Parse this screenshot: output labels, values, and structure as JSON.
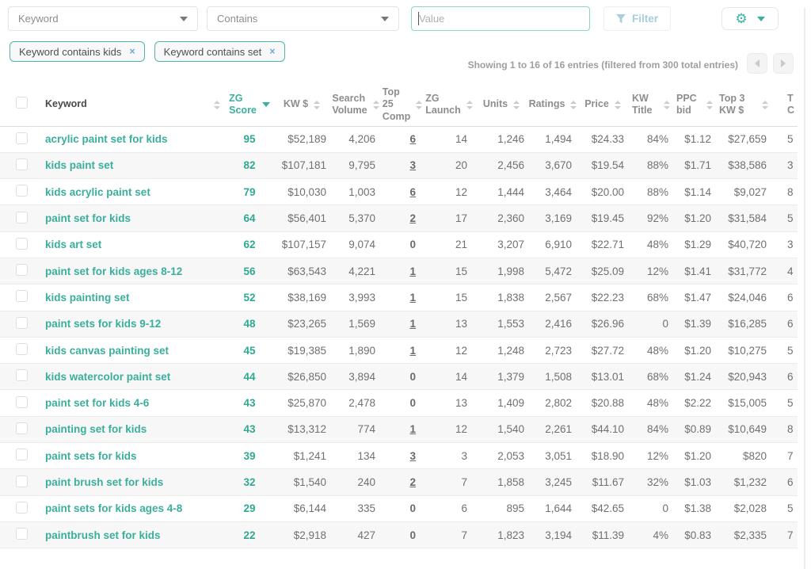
{
  "accent_color": "#3aaf9c",
  "icons": {
    "remove": "×",
    "gear": "⚙"
  },
  "filter_bar": {
    "field_select": {
      "value": "Keyword"
    },
    "operator_select": {
      "value": "Contains"
    },
    "value_input": {
      "placeholder": "Value"
    },
    "filter_button_label": "Filter"
  },
  "filters": [
    {
      "label": "Keyword contains kids"
    },
    {
      "label": "Keyword contains set"
    }
  ],
  "results_summary": "Showing 1 to 16 of 16 entries (filtered from 300 total entries)",
  "table": {
    "columns": [
      {
        "label": "Keyword",
        "sortable": true
      },
      {
        "label": "ZG Score",
        "sortable": true,
        "sorted": "desc"
      },
      {
        "label": "KW $",
        "sortable": true
      },
      {
        "label": "Search Volume",
        "sortable": true
      },
      {
        "label": "Top 25 Comp",
        "sortable": true
      },
      {
        "label": "ZG Launch",
        "sortable": true
      },
      {
        "label": "Units",
        "sortable": true
      },
      {
        "label": "Ratings",
        "sortable": true
      },
      {
        "label": "Price",
        "sortable": true
      },
      {
        "label": "KW Title",
        "sortable": true
      },
      {
        "label": "PPC bid",
        "sortable": true
      },
      {
        "label": "Top 3 KW $",
        "sortable": true
      },
      {
        "label": "T\nC",
        "sortable": false,
        "clipped": true
      }
    ],
    "rows": [
      {
        "keyword": "acrylic paint set for kids",
        "zg_score": "95",
        "kw_dollars": "$52,189",
        "search_volume": "4,206",
        "top_25_comp": "6",
        "top_25_link": true,
        "zg_launch": "14",
        "units": "1,246",
        "ratings": "1,494",
        "price": "$24.33",
        "kw_title": "84%",
        "ppc_bid": "$1.12",
        "top_3_kw_dollars": "$27,659",
        "clipped_col": "5"
      },
      {
        "keyword": "kids paint set",
        "zg_score": "82",
        "kw_dollars": "$107,181",
        "search_volume": "9,795",
        "top_25_comp": "3",
        "top_25_link": true,
        "zg_launch": "20",
        "units": "2,456",
        "ratings": "3,670",
        "price": "$19.54",
        "kw_title": "88%",
        "ppc_bid": "$1.71",
        "top_3_kw_dollars": "$38,586",
        "clipped_col": "3"
      },
      {
        "keyword": "kids acrylic paint set",
        "zg_score": "79",
        "kw_dollars": "$10,030",
        "search_volume": "1,003",
        "top_25_comp": "6",
        "top_25_link": true,
        "zg_launch": "12",
        "units": "1,444",
        "ratings": "3,464",
        "price": "$20.00",
        "kw_title": "88%",
        "ppc_bid": "$1.14",
        "top_3_kw_dollars": "$9,027",
        "clipped_col": "8"
      },
      {
        "keyword": "paint set for kids",
        "zg_score": "64",
        "kw_dollars": "$56,401",
        "search_volume": "5,370",
        "top_25_comp": "2",
        "top_25_link": true,
        "zg_launch": "17",
        "units": "2,360",
        "ratings": "3,169",
        "price": "$19.45",
        "kw_title": "92%",
        "ppc_bid": "$1.20",
        "top_3_kw_dollars": "$31,584",
        "clipped_col": "5"
      },
      {
        "keyword": "kids art set",
        "zg_score": "62",
        "kw_dollars": "$107,157",
        "search_volume": "9,074",
        "top_25_comp": "0",
        "top_25_link": false,
        "zg_launch": "21",
        "units": "3,207",
        "ratings": "6,910",
        "price": "$22.71",
        "kw_title": "48%",
        "ppc_bid": "$1.29",
        "top_3_kw_dollars": "$40,720",
        "clipped_col": "3"
      },
      {
        "keyword": "paint set for kids ages 8-12",
        "zg_score": "56",
        "kw_dollars": "$63,543",
        "search_volume": "4,221",
        "top_25_comp": "1",
        "top_25_link": true,
        "zg_launch": "15",
        "units": "1,998",
        "ratings": "5,472",
        "price": "$25.09",
        "kw_title": "12%",
        "ppc_bid": "$1.41",
        "top_3_kw_dollars": "$31,772",
        "clipped_col": "4"
      },
      {
        "keyword": "kids painting set",
        "zg_score": "52",
        "kw_dollars": "$38,169",
        "search_volume": "3,993",
        "top_25_comp": "1",
        "top_25_link": true,
        "zg_launch": "15",
        "units": "1,838",
        "ratings": "2,567",
        "price": "$22.23",
        "kw_title": "68%",
        "ppc_bid": "$1.47",
        "top_3_kw_dollars": "$24,046",
        "clipped_col": "6"
      },
      {
        "keyword": "paint sets for kids 9-12",
        "zg_score": "48",
        "kw_dollars": "$23,265",
        "search_volume": "1,569",
        "top_25_comp": "1",
        "top_25_link": true,
        "zg_launch": "13",
        "units": "1,553",
        "ratings": "2,416",
        "price": "$26.96",
        "kw_title": "0",
        "ppc_bid": "$1.39",
        "top_3_kw_dollars": "$16,285",
        "clipped_col": "6"
      },
      {
        "keyword": "kids canvas painting set",
        "zg_score": "45",
        "kw_dollars": "$19,385",
        "search_volume": "1,890",
        "top_25_comp": "1",
        "top_25_link": true,
        "zg_launch": "12",
        "units": "1,248",
        "ratings": "2,723",
        "price": "$27.72",
        "kw_title": "48%",
        "ppc_bid": "$1.20",
        "top_3_kw_dollars": "$10,275",
        "clipped_col": "5"
      },
      {
        "keyword": "kids watercolor paint set",
        "zg_score": "44",
        "kw_dollars": "$26,850",
        "search_volume": "3,894",
        "top_25_comp": "0",
        "top_25_link": false,
        "zg_launch": "14",
        "units": "1,379",
        "ratings": "1,508",
        "price": "$13.01",
        "kw_title": "68%",
        "ppc_bid": "$1.24",
        "top_3_kw_dollars": "$20,943",
        "clipped_col": "6"
      },
      {
        "keyword": "paint set for kids 4-6",
        "zg_score": "43",
        "kw_dollars": "$25,870",
        "search_volume": "2,478",
        "top_25_comp": "0",
        "top_25_link": false,
        "zg_launch": "13",
        "units": "1,409",
        "ratings": "2,802",
        "price": "$20.88",
        "kw_title": "48%",
        "ppc_bid": "$2.22",
        "top_3_kw_dollars": "$15,005",
        "clipped_col": "5"
      },
      {
        "keyword": "painting set for kids",
        "zg_score": "43",
        "kw_dollars": "$13,312",
        "search_volume": "774",
        "top_25_comp": "1",
        "top_25_link": true,
        "zg_launch": "12",
        "units": "1,540",
        "ratings": "2,261",
        "price": "$44.10",
        "kw_title": "84%",
        "ppc_bid": "$0.89",
        "top_3_kw_dollars": "$10,649",
        "clipped_col": "8"
      },
      {
        "keyword": "paint sets for kids",
        "zg_score": "39",
        "kw_dollars": "$1,241",
        "search_volume": "134",
        "top_25_comp": "3",
        "top_25_link": true,
        "zg_launch": "3",
        "units": "2,053",
        "ratings": "3,051",
        "price": "$18.90",
        "kw_title": "12%",
        "ppc_bid": "$1.20",
        "top_3_kw_dollars": "$820",
        "clipped_col": "7"
      },
      {
        "keyword": "paint brush set for kids",
        "zg_score": "32",
        "kw_dollars": "$1,540",
        "search_volume": "240",
        "top_25_comp": "2",
        "top_25_link": true,
        "zg_launch": "7",
        "units": "1,858",
        "ratings": "3,245",
        "price": "$11.67",
        "kw_title": "32%",
        "ppc_bid": "$1.03",
        "top_3_kw_dollars": "$1,232",
        "clipped_col": "6"
      },
      {
        "keyword": "paint sets for kids ages 4-8",
        "zg_score": "29",
        "kw_dollars": "$6,144",
        "search_volume": "335",
        "top_25_comp": "0",
        "top_25_link": false,
        "zg_launch": "6",
        "units": "895",
        "ratings": "1,644",
        "price": "$42.65",
        "kw_title": "0",
        "ppc_bid": "$1.38",
        "top_3_kw_dollars": "$2,028",
        "clipped_col": "5"
      },
      {
        "keyword": "paintbrush set for kids",
        "zg_score": "22",
        "kw_dollars": "$2,918",
        "search_volume": "427",
        "top_25_comp": "0",
        "top_25_link": false,
        "zg_launch": "7",
        "units": "1,823",
        "ratings": "3,194",
        "price": "$11.39",
        "kw_title": "4%",
        "ppc_bid": "$0.83",
        "top_3_kw_dollars": "$2,335",
        "clipped_col": "7"
      }
    ]
  }
}
